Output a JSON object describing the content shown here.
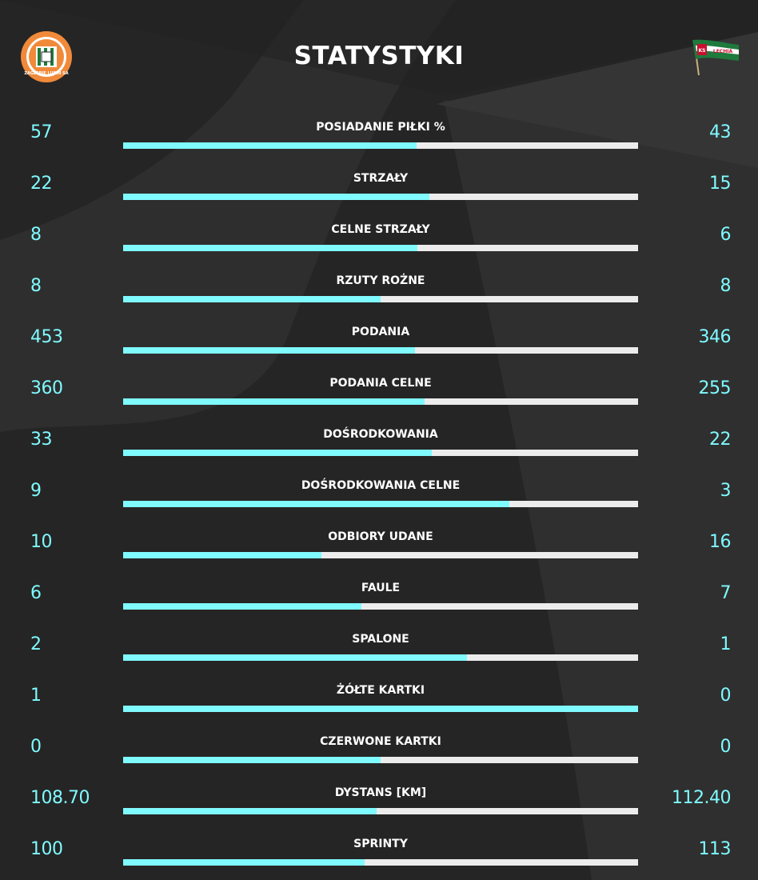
{
  "title": "STATYSTYKI",
  "home_logo_text": "ZAGŁĘBIE LUBIN SA",
  "away_logo_text": "KS LECHIA",
  "colors": {
    "accent": "#7ffaff",
    "bar_track": "#ececec",
    "background": "#252525",
    "text": "#ffffff"
  },
  "stats": [
    {
      "label": "POSIADANIE PIŁKI %",
      "home": "57",
      "away": "43",
      "home_share": 0.57
    },
    {
      "label": "STRZAŁY",
      "home": "22",
      "away": "15",
      "home_share": 0.595
    },
    {
      "label": "CELNE STRZAŁY",
      "home": "8",
      "away": "6",
      "home_share": 0.571
    },
    {
      "label": "RZUTY ROŻNE",
      "home": "8",
      "away": "8",
      "home_share": 0.5
    },
    {
      "label": "PODANIA",
      "home": "453",
      "away": "346",
      "home_share": 0.567
    },
    {
      "label": "PODANIA CELNE",
      "home": "360",
      "away": "255",
      "home_share": 0.585
    },
    {
      "label": "DOŚRODKOWANIA",
      "home": "33",
      "away": "22",
      "home_share": 0.6
    },
    {
      "label": "DOŚRODKOWANIA CELNE",
      "home": "9",
      "away": "3",
      "home_share": 0.75
    },
    {
      "label": "ODBIORY UDANE",
      "home": "10",
      "away": "16",
      "home_share": 0.385
    },
    {
      "label": "FAULE",
      "home": "6",
      "away": "7",
      "home_share": 0.462
    },
    {
      "label": "SPALONE",
      "home": "2",
      "away": "1",
      "home_share": 0.667
    },
    {
      "label": "ŻÓŁTE KARTKI",
      "home": "1",
      "away": "0",
      "home_share": 1.0
    },
    {
      "label": "CZERWONE KARTKI",
      "home": "0",
      "away": "0",
      "home_share": 0.5
    },
    {
      "label": "DYSTANS [KM]",
      "home": "108.70",
      "away": "112.40",
      "home_share": 0.492
    },
    {
      "label": "SPRINTY",
      "home": "100",
      "away": "113",
      "home_share": 0.469
    }
  ]
}
